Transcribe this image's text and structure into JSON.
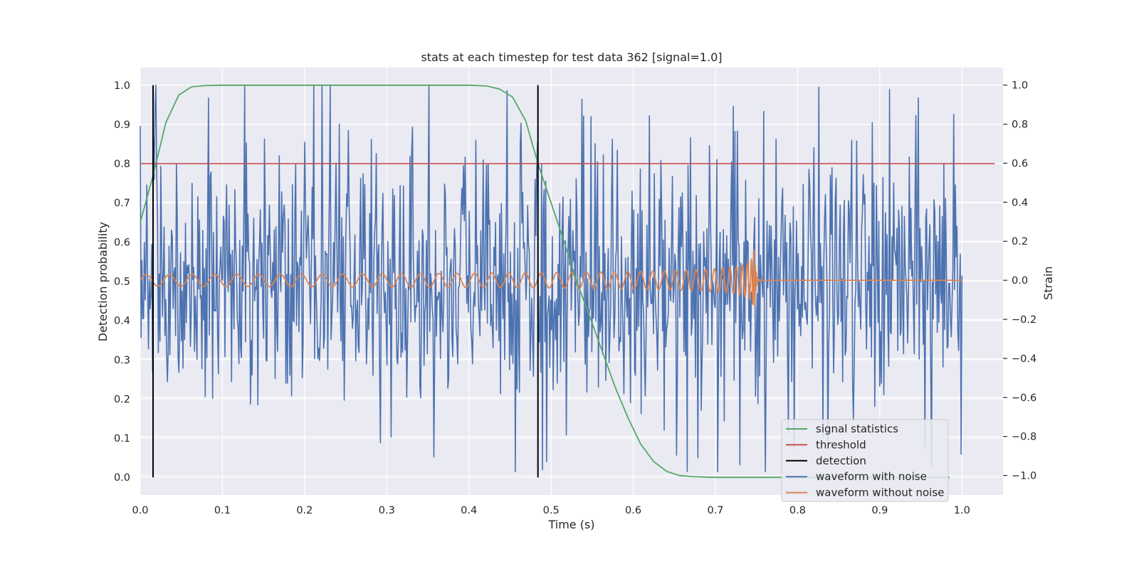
{
  "chart_data": {
    "type": "line",
    "title": "stats at each timestep for test data 362 [signal=1.0]",
    "xlabel": "Time (s)",
    "ylabel_left": "Detection probability",
    "ylabel_right": "Strain",
    "xlim": [
      0.0,
      1.05
    ],
    "ylim_left": [
      -0.045,
      1.045
    ],
    "ylim_right": [
      -1.1,
      1.09
    ],
    "x_ticks": [
      0.0,
      0.1,
      0.2,
      0.3,
      0.4,
      0.5,
      0.6,
      0.7,
      0.8,
      0.9,
      1.0
    ],
    "x_tick_labels": [
      "0.0",
      "0.1",
      "0.2",
      "0.3",
      "0.4",
      "0.5",
      "0.6",
      "0.7",
      "0.8",
      "0.9",
      "1.0"
    ],
    "y_left_ticks": [
      0.0,
      0.1,
      0.2,
      0.3,
      0.4,
      0.5,
      0.6,
      0.7,
      0.8,
      0.9,
      1.0
    ],
    "y_left_tick_labels": [
      "0.0",
      "0.1",
      "0.2",
      "0.3",
      "0.4",
      "0.5",
      "0.6",
      "0.7",
      "0.8",
      "0.9",
      "1.0"
    ],
    "y_right_ticks": [
      -1.0,
      -0.8,
      -0.6,
      -0.4,
      -0.2,
      0.0,
      0.2,
      0.4,
      0.6,
      0.8,
      1.0
    ],
    "y_right_tick_labels": [
      "−1.0",
      "−0.8",
      "−0.6",
      "−0.4",
      "−0.2",
      "0.0",
      "0.2",
      "0.4",
      "0.6",
      "0.8",
      "1.0"
    ],
    "grid": true,
    "legend_position": "lower-right",
    "series": [
      {
        "name": "signal statistics",
        "color": "#55a868",
        "axis": "left",
        "x": [
          0.0,
          0.0156,
          0.03125,
          0.0469,
          0.0625,
          0.078,
          0.1,
          0.2,
          0.3,
          0.4,
          0.422,
          0.4375,
          0.453,
          0.469,
          0.484,
          0.5,
          0.516,
          0.531,
          0.547,
          0.5625,
          0.578,
          0.594,
          0.609,
          0.625,
          0.641,
          0.656,
          0.672,
          0.7,
          0.8,
          0.9,
          0.985
        ],
        "y": [
          0.65,
          0.77,
          0.905,
          0.975,
          0.996,
          0.999,
          1.0,
          1.0,
          1.0,
          1.0,
          0.998,
          0.99,
          0.97,
          0.91,
          0.8,
          0.7,
          0.6,
          0.5,
          0.41,
          0.32,
          0.23,
          0.15,
          0.085,
          0.04,
          0.015,
          0.005,
          0.002,
          0.0,
          0.0,
          0.0,
          0.0
        ]
      },
      {
        "name": "threshold",
        "color": "#c44e52",
        "axis": "left",
        "x": [
          0.0,
          1.04
        ],
        "y": [
          0.8,
          0.8
        ]
      },
      {
        "name": "detection",
        "color": "#000000",
        "axis": "left",
        "segments": [
          {
            "x": 0.0156,
            "y": [
              0.0,
              1.0
            ]
          },
          {
            "x": 0.484,
            "y": [
              0.0,
              1.0
            ]
          }
        ]
      },
      {
        "name": "waveform with noise",
        "color": "#4c72b0",
        "axis": "right",
        "x_range": [
          0.0,
          1.0
        ],
        "n_points": 1000,
        "y_range_approx": [
          -0.98,
          1.0
        ],
        "notable_points": [
          {
            "x": 0.127,
            "y": 1.0
          },
          {
            "x": 0.489,
            "y": -0.97
          },
          {
            "x": 0.99,
            "y": 0.85
          },
          {
            "x": 0.963,
            "y": -0.95
          }
        ]
      },
      {
        "name": "waveform without noise",
        "color": "#dd8452",
        "axis": "right",
        "description_values": {
          "chirp_start_freq_hz": 35,
          "chirp_start_amplitude": 0.03,
          "merger_time": 0.748,
          "peak_amplitude": 0.22,
          "after_merger_value": 0.0
        }
      }
    ]
  },
  "legend": {
    "items": [
      {
        "label": "signal statistics",
        "color": "#55a868"
      },
      {
        "label": "threshold",
        "color": "#c44e52"
      },
      {
        "label": "detection",
        "color": "#000000"
      },
      {
        "label": "waveform with noise",
        "color": "#4c72b0"
      },
      {
        "label": "waveform without noise",
        "color": "#dd8452"
      }
    ]
  },
  "colors": {
    "plot_background": "#eaeaf2",
    "grid": "#ffffff",
    "text": "#262626"
  }
}
